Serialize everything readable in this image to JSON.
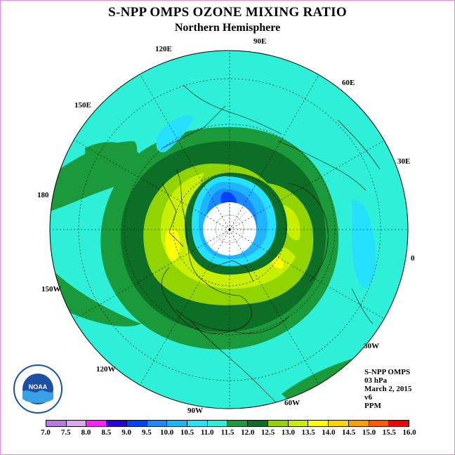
{
  "title": "S-NPP OMPS OZONE MIXING RATIO",
  "subtitle": "Northern Hemisphere",
  "longitude_labels": {
    "lon_90e": "90E",
    "lon_60e": "60E",
    "lon_30e": "30E",
    "lon_0": "0",
    "lon_30w": "30W",
    "lon_60w": "60W",
    "lon_90w": "90W",
    "lon_120w": "120W",
    "lon_150w": "150W",
    "lon_180": "180",
    "lon_150e": "150E",
    "lon_120e": "120E"
  },
  "info": {
    "instrument": "S-NPP OMPS",
    "level": "03 hPa",
    "date": "March 2, 2015",
    "version": "v6",
    "units": "PPM"
  },
  "logo": {
    "text": "NOAA"
  },
  "colorbar": {
    "labels": [
      "7.0",
      "7.5",
      "8.0",
      "8.5",
      "9.0",
      "9.5",
      "10.0",
      "10.5",
      "11.0",
      "11.5",
      "12.0",
      "12.5",
      "13.0",
      "13.5",
      "14.0",
      "14.5",
      "15.0",
      "15.5",
      "16.0"
    ],
    "colors": [
      "#b779e8",
      "#d9a8f0",
      "#ff22ff",
      "#2a00d6",
      "#0044ff",
      "#1a88ff",
      "#1eb4ff",
      "#25e0ff",
      "#2ef0d8",
      "#1a9a3a",
      "#0d6e26",
      "#92d400",
      "#c8ee00",
      "#ffff00",
      "#ffd200",
      "#ff9e00",
      "#ff5a00",
      "#f00000",
      "#8a5a3c"
    ]
  },
  "map_colors": {
    "bg": "#2ef0d8",
    "band_115": "#1a9a3a",
    "band_12": "#0d6e26",
    "band_125": "#92d400",
    "band_13": "#c8ee00",
    "band_135": "#ffff00",
    "low_105": "#25e0ff",
    "low_10": "#1eb4ff",
    "low_95": "#1a88ff",
    "low_9": "#0044ff",
    "pole": "#ffffff"
  }
}
